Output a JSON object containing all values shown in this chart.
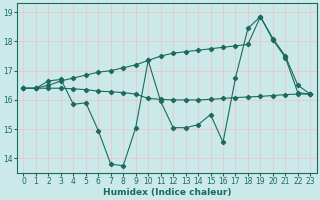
{
  "xlabel": "Humidex (Indice chaleur)",
  "ylabel": "",
  "bg_color": "#cce9e9",
  "line_color": "#1a6b5e",
  "grid_color": "#e8c8c8",
  "x_all": [
    0,
    1,
    2,
    3,
    4,
    5,
    6,
    7,
    8,
    9,
    10,
    11,
    12,
    13,
    14,
    15,
    16,
    17,
    18,
    19,
    20,
    21,
    22,
    23
  ],
  "y_zigzag": [
    16.4,
    16.4,
    16.65,
    16.7,
    15.85,
    15.9,
    14.95,
    13.8,
    13.75,
    15.05,
    17.35,
    15.95,
    15.05,
    15.05,
    15.15,
    15.5,
    14.55,
    16.75,
    18.45,
    18.85,
    18.05,
    17.45,
    16.25,
    16.2
  ],
  "y_top": [
    16.4,
    16.4,
    16.5,
    16.65,
    16.75,
    16.85,
    16.95,
    17.0,
    17.1,
    17.2,
    17.35,
    17.5,
    17.6,
    17.65,
    17.7,
    17.75,
    17.8,
    17.85,
    17.9,
    18.85,
    18.1,
    17.5,
    16.5,
    16.2
  ],
  "y_bottom": [
    16.4,
    16.4,
    16.4,
    16.4,
    16.38,
    16.35,
    16.3,
    16.28,
    16.25,
    16.2,
    16.05,
    16.02,
    16.0,
    16.0,
    16.0,
    16.02,
    16.05,
    16.08,
    16.1,
    16.12,
    16.15,
    16.18,
    16.2,
    16.2
  ],
  "ylim": [
    13.5,
    19.3
  ],
  "xlim": [
    -0.5,
    23.5
  ],
  "yticks": [
    14,
    15,
    16,
    17,
    18,
    19
  ],
  "xticks": [
    0,
    1,
    2,
    3,
    4,
    5,
    6,
    7,
    8,
    9,
    10,
    11,
    12,
    13,
    14,
    15,
    16,
    17,
    18,
    19,
    20,
    21,
    22,
    23
  ],
  "label_fontsize": 6.5,
  "tick_fontsize": 5.5
}
